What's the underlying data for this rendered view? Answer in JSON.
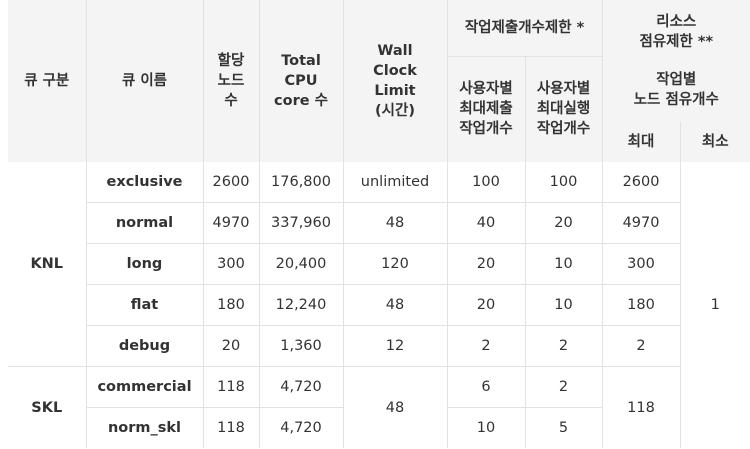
{
  "header": {
    "queue_group": "큐 구분",
    "queue_name": "큐 이름",
    "alloc_nodes": [
      "할당",
      "노드",
      "수"
    ],
    "total_cpu": [
      "Total",
      "CPU",
      "core 수"
    ],
    "wall_clock": [
      "Wall",
      "Clock",
      "Limit",
      "(시간)"
    ],
    "job_limit": "작업제출개수제한 *",
    "per_user_submit": [
      "사용자별",
      "최대제출",
      "작업개수"
    ],
    "per_user_run": [
      "사용자별",
      "최대실행",
      "작업개수"
    ],
    "resource_limit": [
      "리소스",
      "점유제한 **"
    ],
    "per_job_nodes": [
      "작업별",
      "노드 점유개수"
    ],
    "max": "최대",
    "min": "최소"
  },
  "groups": [
    {
      "name": "KNL",
      "min_nodes": "1",
      "rows": [
        {
          "name": "exclusive",
          "nodes": "2600",
          "cores": "176,800",
          "wall": "unlimited",
          "submit": "100",
          "run": "100",
          "max": "2600"
        },
        {
          "name": "normal",
          "nodes": "4970",
          "cores": "337,960",
          "wall": "48",
          "submit": "40",
          "run": "20",
          "max": "4970"
        },
        {
          "name": "long",
          "nodes": "300",
          "cores": "20,400",
          "wall": "120",
          "submit": "20",
          "run": "10",
          "max": "300"
        },
        {
          "name": "flat",
          "nodes": "180",
          "cores": "12,240",
          "wall": "48",
          "submit": "20",
          "run": "10",
          "max": "180"
        },
        {
          "name": "debug",
          "nodes": "20",
          "cores": "1,360",
          "wall": "12",
          "submit": "2",
          "run": "2",
          "max": "2"
        }
      ]
    },
    {
      "name": "SKL",
      "wall": "48",
      "max": "118",
      "rows": [
        {
          "name": "commercial",
          "nodes": "118",
          "cores": "4,720",
          "submit": "6",
          "run": "2"
        },
        {
          "name": "norm_skl",
          "nodes": "118",
          "cores": "4,720",
          "submit": "10",
          "run": "5"
        }
      ]
    }
  ]
}
